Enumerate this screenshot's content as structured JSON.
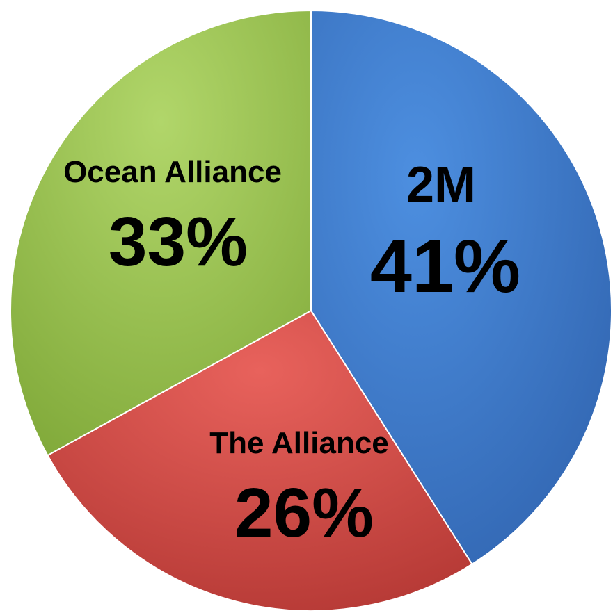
{
  "chart_data": {
    "type": "pie",
    "start_angle_deg": 0,
    "direction": "clockwise",
    "slices": [
      {
        "name": "2M",
        "value": 41,
        "label": "41%",
        "color": "#3f7fcf"
      },
      {
        "name": "The Alliance",
        "value": 26,
        "label": "26%",
        "color": "#d64a45"
      },
      {
        "name": "Ocean Alliance",
        "value": 33,
        "label": "33%",
        "color": "#9bc64a"
      }
    ]
  }
}
